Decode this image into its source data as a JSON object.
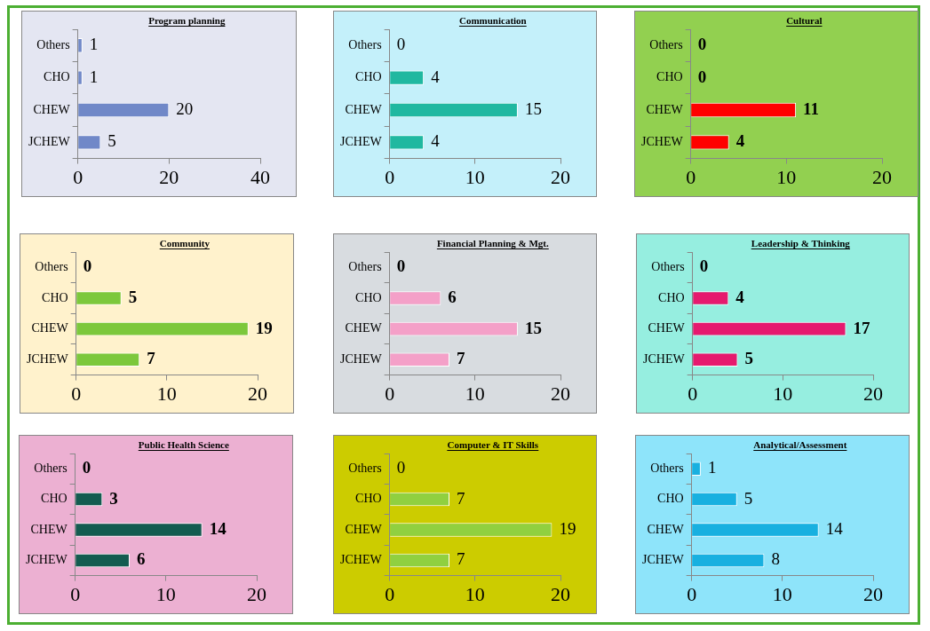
{
  "chart_data": [
    {
      "type": "bar",
      "orientation": "horizontal",
      "title": "Program planning",
      "categories": [
        "Others",
        "CHO",
        "CHEW",
        "JCHEW"
      ],
      "values": [
        1,
        1,
        20,
        5
      ],
      "color": "#7088c8",
      "xlim": [
        0,
        40
      ],
      "xticks": [
        0,
        20,
        40
      ],
      "data_labels": true,
      "grid": false,
      "legend": false
    },
    {
      "type": "bar",
      "orientation": "horizontal",
      "title": "Communication",
      "categories": [
        "Others",
        "CHO",
        "CHEW",
        "JCHEW"
      ],
      "values": [
        0,
        4,
        15,
        4
      ],
      "color": "#20b8a0",
      "xlim": [
        0,
        20
      ],
      "xticks": [
        0,
        10,
        20
      ],
      "data_labels": true,
      "grid": false,
      "legend": false
    },
    {
      "type": "bar",
      "orientation": "horizontal",
      "title": "Cultural",
      "categories": [
        "Others",
        "CHO",
        "CHEW",
        "JCHEW"
      ],
      "values": [
        0,
        0,
        11,
        4
      ],
      "color": "#ff0000",
      "xlim": [
        0,
        20
      ],
      "xticks": [
        0,
        10,
        20
      ],
      "data_labels": true,
      "grid": false,
      "legend": false
    },
    {
      "type": "bar",
      "orientation": "horizontal",
      "title": "Community",
      "categories": [
        "Others",
        "CHO",
        "CHEW",
        "JCHEW"
      ],
      "values": [
        0,
        5,
        19,
        7
      ],
      "color": "#7cc83c",
      "xlim": [
        0,
        20
      ],
      "xticks": [
        0,
        10,
        20
      ],
      "data_labels": true,
      "grid": false,
      "legend": false
    },
    {
      "type": "bar",
      "orientation": "horizontal",
      "title": "Financial Planning & Mgt.",
      "categories": [
        "Others",
        "CHO",
        "CHEW",
        "JCHEW"
      ],
      "values": [
        0,
        6,
        15,
        7
      ],
      "color": "#f4a0c8",
      "xlim": [
        0,
        20
      ],
      "xticks": [
        0,
        10,
        20
      ],
      "data_labels": true,
      "grid": false,
      "legend": false
    },
    {
      "type": "bar",
      "orientation": "horizontal",
      "title": "Leadership & Thinking",
      "categories": [
        "Others",
        "CHO",
        "CHEW",
        "JCHEW"
      ],
      "values": [
        0,
        4,
        17,
        5
      ],
      "color": "#e6196e",
      "xlim": [
        0,
        20
      ],
      "xticks": [
        0,
        10,
        20
      ],
      "data_labels": true,
      "grid": false,
      "legend": false
    },
    {
      "type": "bar",
      "orientation": "horizontal",
      "title": "Public Health Science",
      "categories": [
        "Others",
        "CHO",
        "CHEW",
        "JCHEW"
      ],
      "values": [
        0,
        3,
        14,
        6
      ],
      "color": "#135c50",
      "xlim": [
        0,
        20
      ],
      "xticks": [
        0,
        10,
        20
      ],
      "data_labels": true,
      "grid": false,
      "legend": false
    },
    {
      "type": "bar",
      "orientation": "horizontal",
      "title": "Computer & IT Skills",
      "categories": [
        "Others",
        "CHO",
        "CHEW",
        "JCHEW"
      ],
      "values": [
        0,
        7,
        19,
        7
      ],
      "color": "#90d040",
      "xlim": [
        0,
        20
      ],
      "xticks": [
        0,
        10,
        20
      ],
      "data_labels": true,
      "grid": false,
      "legend": false
    },
    {
      "type": "bar",
      "orientation": "horizontal",
      "title": "Analytical/Assessment",
      "categories": [
        "Others",
        "CHO",
        "CHEW",
        "JCHEW"
      ],
      "values": [
        1,
        5,
        14,
        8
      ],
      "color": "#18b0e0",
      "xlim": [
        0,
        20
      ],
      "xticks": [
        0,
        10,
        20
      ],
      "data_labels": true,
      "grid": false,
      "legend": false
    }
  ]
}
